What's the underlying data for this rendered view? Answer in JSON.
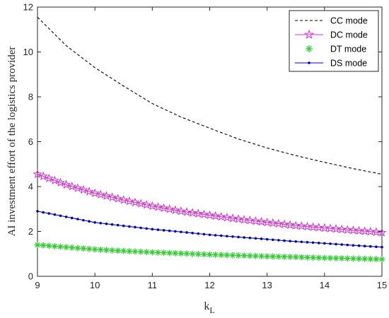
{
  "chart_data": {
    "type": "line",
    "title": "",
    "xlabel_main": "k",
    "xlabel_sub": "L",
    "ylabel": "AI investment effort of the logistics provider",
    "xlim": [
      9,
      15
    ],
    "ylim": [
      0,
      12
    ],
    "x_ticks": [
      "9",
      "10",
      "11",
      "12",
      "13",
      "14",
      "15"
    ],
    "y_ticks": [
      "0",
      "2",
      "4",
      "6",
      "8",
      "10",
      "12"
    ],
    "grid": false,
    "legend_position": "top-right",
    "x": [
      9,
      9.5,
      10,
      10.5,
      11,
      11.5,
      12,
      12.5,
      13,
      13.5,
      14,
      14.5,
      15
    ],
    "series": [
      {
        "name": "CC mode",
        "color": "#000000",
        "style": "dashed",
        "values": [
          11.55,
          10.28,
          9.3,
          8.48,
          7.7,
          7.1,
          6.6,
          6.12,
          5.72,
          5.38,
          5.08,
          4.8,
          4.55
        ]
      },
      {
        "name": "DC mode",
        "color": "#cc33cc",
        "marker": "star",
        "values": [
          4.55,
          4.08,
          3.7,
          3.4,
          3.13,
          2.9,
          2.72,
          2.55,
          2.4,
          2.26,
          2.15,
          2.05,
          1.95
        ]
      },
      {
        "name": "DT mode",
        "color": "#33cc33",
        "marker": "asterisk",
        "values": [
          1.4,
          1.3,
          1.2,
          1.13,
          1.07,
          1.02,
          0.97,
          0.93,
          0.89,
          0.86,
          0.82,
          0.79,
          0.76
        ]
      },
      {
        "name": "DS mode",
        "color": "#0000b3",
        "marker": "dot",
        "values": [
          2.9,
          2.65,
          2.4,
          2.25,
          2.1,
          1.98,
          1.85,
          1.75,
          1.65,
          1.55,
          1.47,
          1.38,
          1.3
        ]
      }
    ]
  }
}
